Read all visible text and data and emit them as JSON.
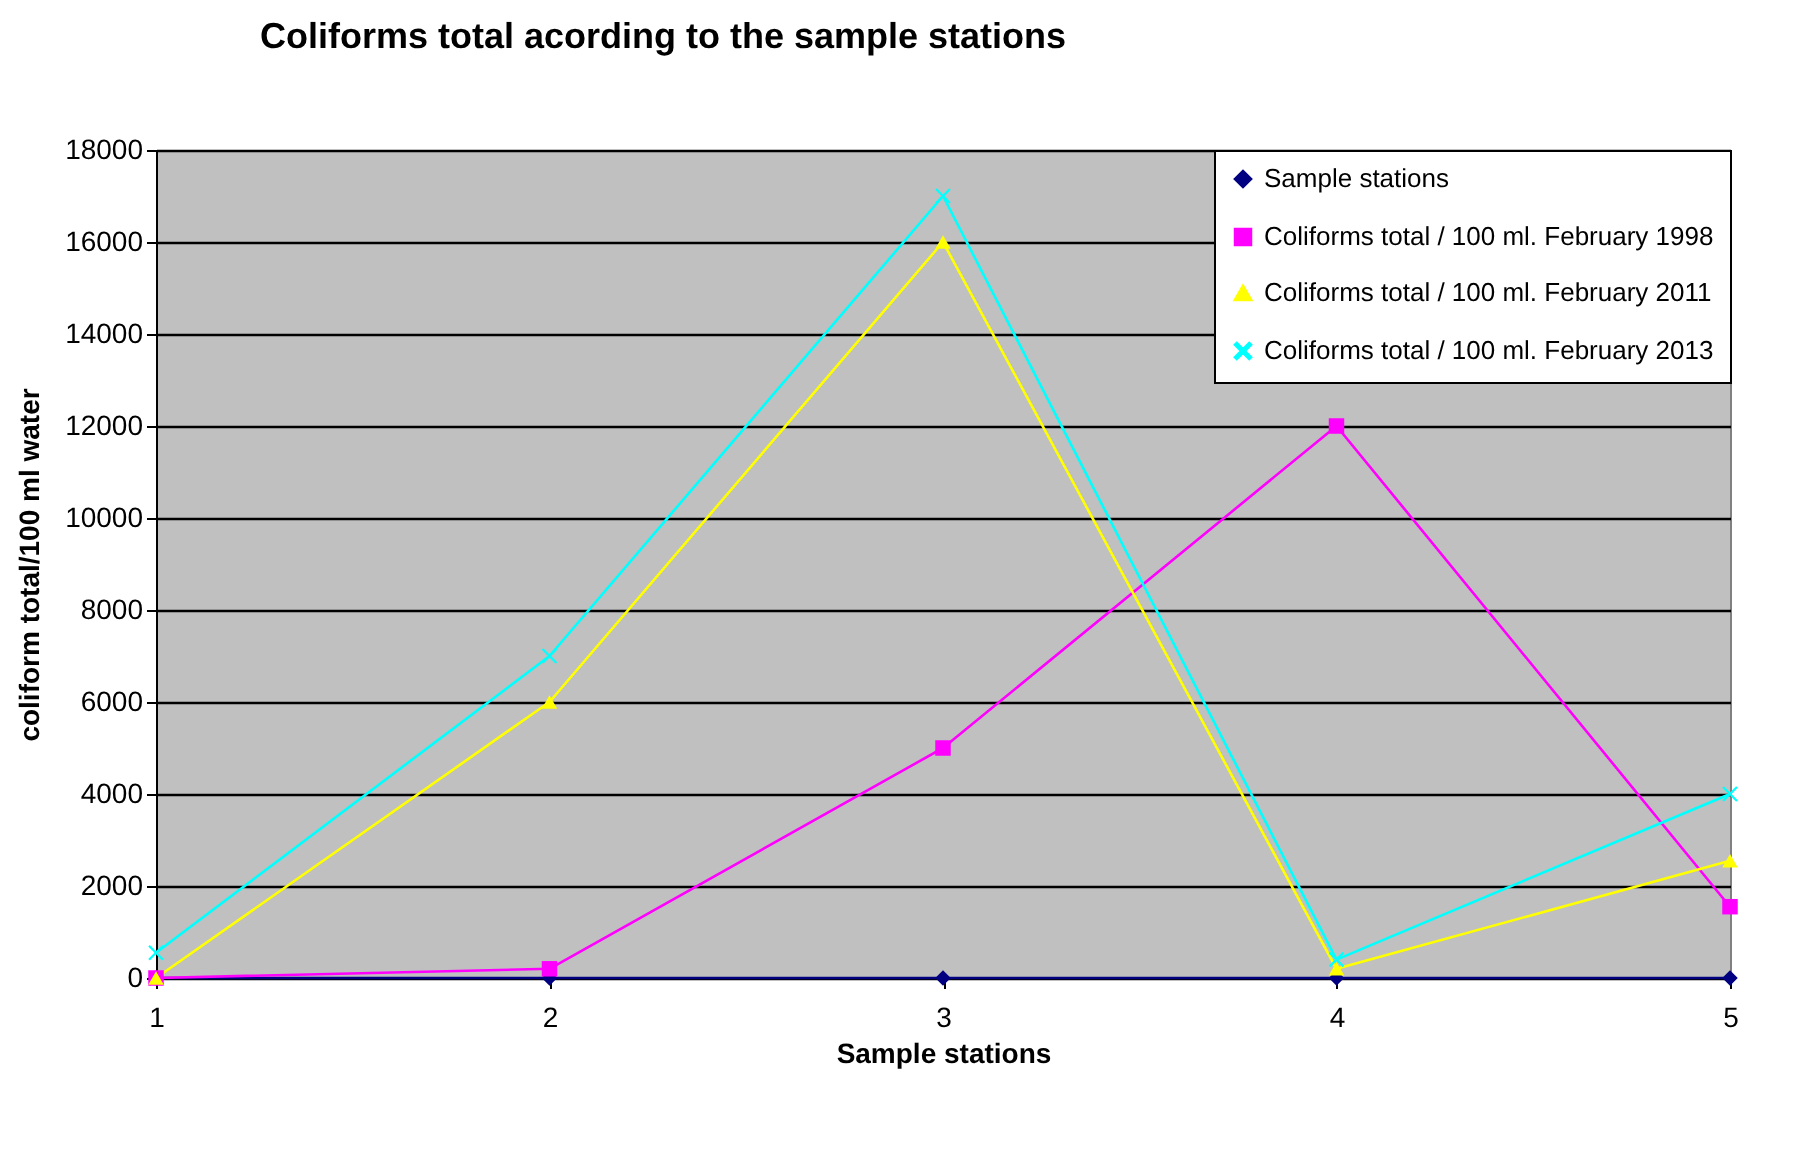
{
  "chart_data": {
    "type": "line",
    "title": "Coliforms total acording to the sample stations",
    "xlabel": "Sample stations",
    "ylabel": "coliform total/100 ml water",
    "categories": [
      "1",
      "2",
      "3",
      "4",
      "5"
    ],
    "ylim": [
      0,
      18000
    ],
    "yticks": [
      0,
      2000,
      4000,
      6000,
      8000,
      10000,
      12000,
      14000,
      16000,
      18000
    ],
    "grid": "y",
    "legend": "top right",
    "series": [
      {
        "name": "Sample stations",
        "color": "#000080",
        "marker": "diamond",
        "values": [
          0,
          0,
          0,
          0,
          0
        ]
      },
      {
        "name": "Coliforms total / 100 ml. February 1998",
        "color": "#ff00ff",
        "marker": "square",
        "values": [
          0,
          200,
          5000,
          12000,
          1550
        ]
      },
      {
        "name": "Coliforms total / 100 ml. February 2011",
        "color": "#ffff00",
        "marker": "triangle",
        "values": [
          0,
          6000,
          16000,
          200,
          2550
        ]
      },
      {
        "name": "Coliforms total / 100 ml. February 2013",
        "color": "#00ffff",
        "marker": "cross",
        "values": [
          550,
          7000,
          17000,
          400,
          4000
        ]
      }
    ]
  }
}
